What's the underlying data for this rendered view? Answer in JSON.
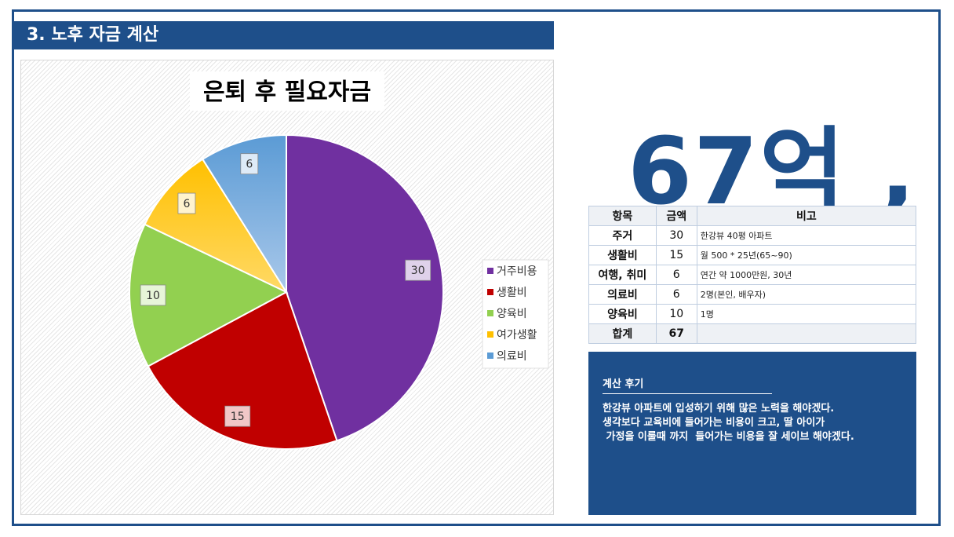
{
  "header": {
    "title": "3. 노후 자금 계산"
  },
  "summary": {
    "total_display": "67억 ,"
  },
  "chart_data": {
    "type": "pie",
    "title": "은퇴 후 필요자금",
    "categories": [
      "거주비용",
      "생활비",
      "양육비",
      "여가생활",
      "의료비"
    ],
    "values": [
      30,
      15,
      10,
      6,
      6
    ],
    "colors": [
      "#7030a0",
      "#c00000",
      "#92d050",
      "#ffc000",
      "#5b9bd5"
    ],
    "data_labels": [
      "30",
      "15",
      "10",
      "6",
      "6"
    ],
    "legend_position": "right",
    "start_angle_deg": 0,
    "direction": "clockwise"
  },
  "table": {
    "headers": [
      "항목",
      "금액",
      "비고"
    ],
    "rows": [
      {
        "item": "주거",
        "amount": "30",
        "note": "한강뷰 40평 아파트"
      },
      {
        "item": "생활비",
        "amount": "15",
        "note": "월 500 * 25년(65~90)"
      },
      {
        "item": "여행, 취미",
        "amount": "6",
        "note": "연간 약 1000만원, 30년"
      },
      {
        "item": "의료비",
        "amount": "6",
        "note": "2명(본인, 배우자)"
      },
      {
        "item": "양육비",
        "amount": "10",
        "note": "1명"
      }
    ],
    "total": {
      "item": "합계",
      "amount": "67",
      "note": ""
    }
  },
  "review": {
    "title": "계산 후기",
    "lines": [
      "한강뷰 아파트에 입성하기 위해 많은 노력을 해야겠다.",
      "생각보다 교육비에 들어가는 비용이 크고, 딸 아이가",
      " 가정을 이룰때 까지  들어가는 비용을 잘 세이브 해야겠다."
    ]
  }
}
